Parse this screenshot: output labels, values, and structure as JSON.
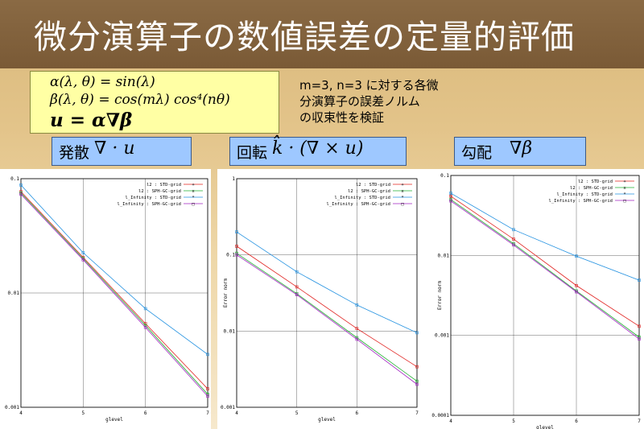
{
  "slide": {
    "title": "微分演算子の数値誤差の定量的評価",
    "formulas": {
      "alpha": "α(λ, θ) = sin(λ)",
      "beta": "β(λ, θ) = cos(mλ) cos⁴(nθ)",
      "u": "u = α∇β"
    },
    "note_lines": [
      "m=3, n=3 に対する各微",
      "分演算子の誤差ノルム",
      "の収束性を検証"
    ],
    "labels": [
      {
        "text": "発散",
        "math": "∇ · u"
      },
      {
        "text": "回転",
        "math": "k̂ · (∇ × u)"
      },
      {
        "text": "勾配",
        "math": "∇β"
      }
    ]
  },
  "colors": {
    "L2_STD": "#e0201e",
    "L2_SPH": "#20b030",
    "Linf_STD": "#2090e0",
    "Linf_SPH": "#a020c0"
  },
  "chart_data": [
    {
      "type": "line",
      "title": "発散",
      "xlabel": "glevel",
      "ylabel": "",
      "x": [
        4,
        5,
        6,
        7
      ],
      "xlim": [
        4,
        7
      ],
      "yscale": "log",
      "ylim": [
        0.001,
        0.1
      ],
      "yticks": [
        {
          "v": 0.1,
          "label": "0.1"
        },
        {
          "v": 0.01,
          "label": "0.01"
        },
        {
          "v": 0.001,
          "label": "0.001"
        }
      ],
      "legend": "top-right",
      "series": [
        {
          "name": "l2 : STD-grid",
          "color_key": "L2_STD",
          "marker": "+",
          "values": [
            0.077,
            0.0205,
            0.0054,
            0.00145
          ]
        },
        {
          "name": "l2 : SPH-GC-grid",
          "color_key": "L2_SPH",
          "marker": "x",
          "values": [
            0.075,
            0.02,
            0.0052,
            0.0013
          ]
        },
        {
          "name": "l_Infinity : STD-grid",
          "color_key": "Linf_STD",
          "marker": "*",
          "values": [
            0.088,
            0.0225,
            0.0073,
            0.0029
          ]
        },
        {
          "name": "l_Infinity : SPH-GC-grid",
          "color_key": "Linf_SPH",
          "marker": "□",
          "values": [
            0.073,
            0.0195,
            0.005,
            0.00125
          ]
        }
      ]
    },
    {
      "type": "line",
      "title": "回転",
      "xlabel": "glevel",
      "ylabel": "Error norm",
      "x": [
        4,
        5,
        6,
        7
      ],
      "xlim": [
        4,
        7
      ],
      "yscale": "log",
      "ylim": [
        0.001,
        1
      ],
      "yticks": [
        {
          "v": 1,
          "label": "1"
        },
        {
          "v": 0.1,
          "label": "0.1"
        },
        {
          "v": 0.01,
          "label": "0.01"
        },
        {
          "v": 0.001,
          "label": "0.001"
        }
      ],
      "legend": "top-right",
      "series": [
        {
          "name": "l2 : STD-grid",
          "color_key": "L2_STD",
          "marker": "+",
          "values": [
            0.13,
            0.038,
            0.0108,
            0.0034
          ]
        },
        {
          "name": "l2 : SPH-GC-grid",
          "color_key": "L2_SPH",
          "marker": "x",
          "values": [
            0.105,
            0.031,
            0.0082,
            0.0022
          ]
        },
        {
          "name": "l_Infinity : STD-grid",
          "color_key": "Linf_STD",
          "marker": "*",
          "values": [
            0.2,
            0.06,
            0.022,
            0.0095
          ]
        },
        {
          "name": "l_Infinity : SPH-GC-grid",
          "color_key": "Linf_SPH",
          "marker": "□",
          "values": [
            0.1,
            0.03,
            0.0078,
            0.002
          ]
        }
      ]
    },
    {
      "type": "line",
      "title": "勾配",
      "xlabel": "glevel",
      "ylabel": "Error norm",
      "x": [
        4,
        5,
        6,
        7
      ],
      "xlim": [
        4,
        7
      ],
      "yscale": "log",
      "ylim": [
        0.0001,
        0.1
      ],
      "yticks": [
        {
          "v": 0.1,
          "label": "0.1"
        },
        {
          "v": 0.01,
          "label": "0.01"
        },
        {
          "v": 0.001,
          "label": "0.001"
        },
        {
          "v": 0.0001,
          "label": "0.0001"
        }
      ],
      "legend": "top-right",
      "series": [
        {
          "name": "l2 : STD-grid",
          "color_key": "L2_STD",
          "marker": "+",
          "values": [
            0.055,
            0.016,
            0.0042,
            0.0013
          ]
        },
        {
          "name": "l2 : SPH-GC-grid",
          "color_key": "L2_SPH",
          "marker": "x",
          "values": [
            0.05,
            0.014,
            0.0036,
            0.00095
          ]
        },
        {
          "name": "l_Infinity : STD-grid",
          "color_key": "Linf_STD",
          "marker": "*",
          "values": [
            0.06,
            0.021,
            0.0098,
            0.0049
          ]
        },
        {
          "name": "l_Infinity : SPH-GC-grid",
          "color_key": "Linf_SPH",
          "marker": "□",
          "values": [
            0.048,
            0.0135,
            0.0035,
            0.0009
          ]
        }
      ]
    }
  ]
}
